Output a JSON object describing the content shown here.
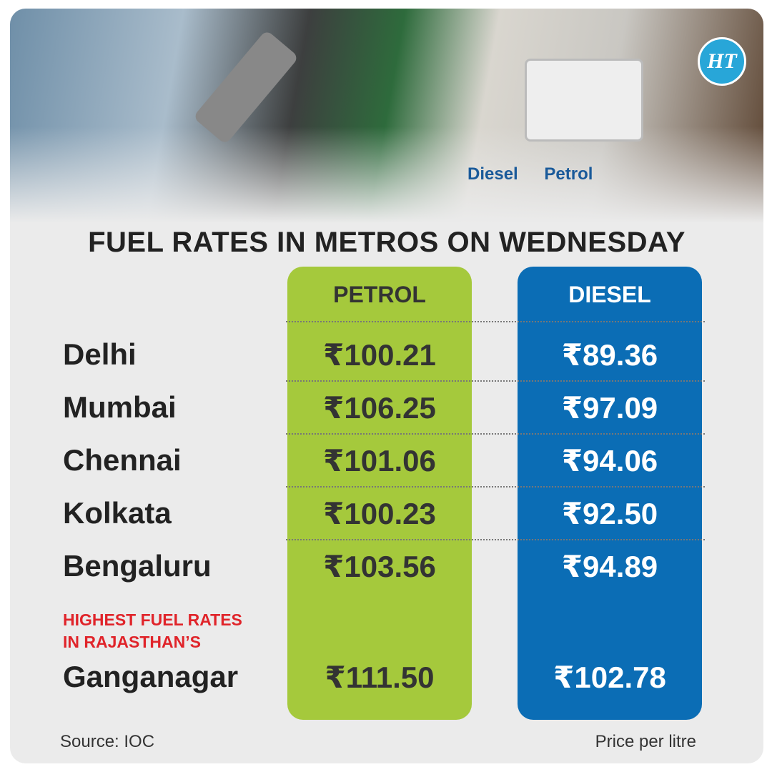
{
  "logo": "HT",
  "photo": {
    "labels": [
      "Diesel",
      "Petrol"
    ]
  },
  "title": "FUEL RATES IN METROS ON WEDNESDAY",
  "columns": [
    "PETROL",
    "DIESEL"
  ],
  "rows": [
    {
      "city": "Delhi",
      "petrol": "₹100.21",
      "diesel": "₹89.36"
    },
    {
      "city": "Mumbai",
      "petrol": "₹106.25",
      "diesel": "₹97.09"
    },
    {
      "city": "Chennai",
      "petrol": "₹101.06",
      "diesel": "₹94.06"
    },
    {
      "city": "Kolkata",
      "petrol": "₹100.23",
      "diesel": "₹92.50"
    },
    {
      "city": "Bengaluru",
      "petrol": "₹103.56",
      "diesel": "₹94.89"
    }
  ],
  "note": [
    "HIGHEST FUEL RATES",
    "IN RAJASTHAN’S"
  ],
  "highlight": {
    "city": "Ganganagar",
    "petrol": "₹111.50",
    "diesel": "₹102.78"
  },
  "source": "Source: IOC",
  "unit": "Price per litre"
}
